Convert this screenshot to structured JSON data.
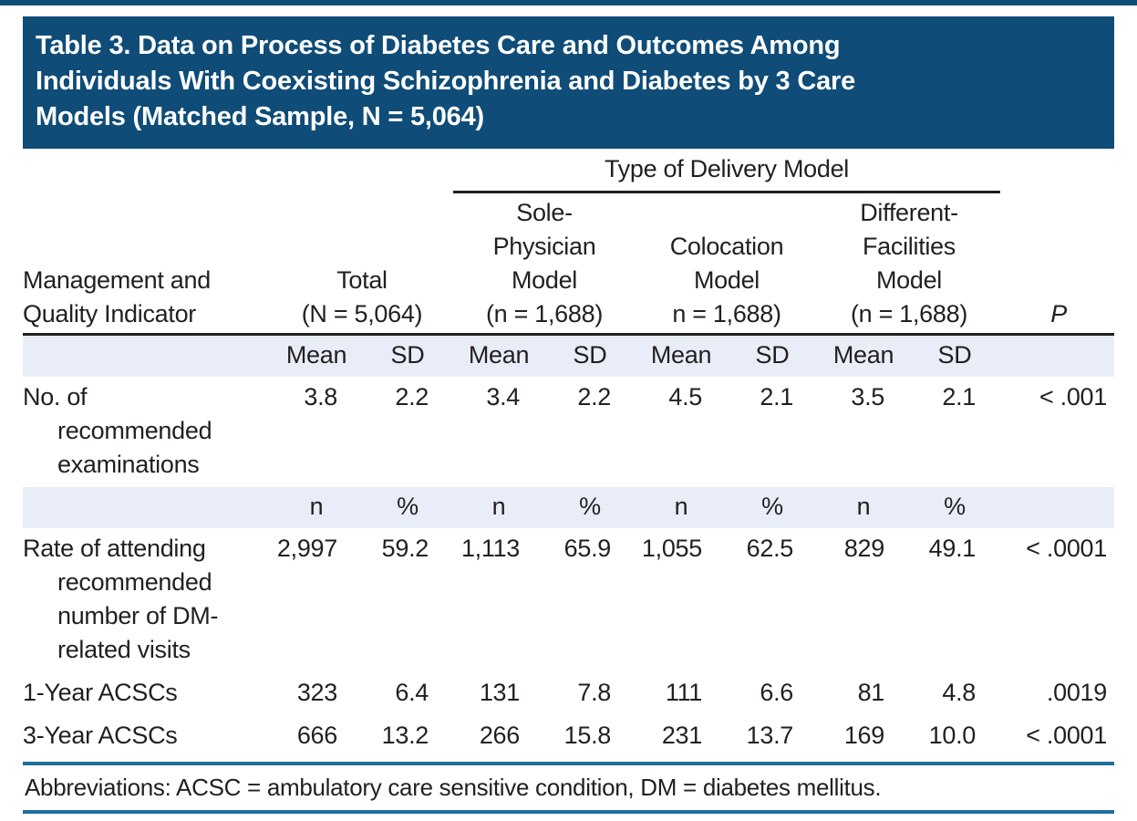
{
  "title_lines": [
    "Table 3. Data on Process of Diabetes Care and Outcomes Among",
    "Individuals With Coexisting Schizophrenia and Diabetes by 3 Care",
    "Models (Matched Sample, N = 5,064)"
  ],
  "columns": {
    "group_label": "Type of Delivery Model",
    "stub_lines": [
      "Management and",
      "Quality Indicator"
    ],
    "groups": [
      {
        "lines": [
          "Total",
          "(N = 5,064)"
        ]
      },
      {
        "lines": [
          "Sole-",
          "Physician",
          "Model",
          "(n = 1,688)"
        ]
      },
      {
        "lines": [
          "Colocation",
          "Model",
          "n = 1,688)"
        ]
      },
      {
        "lines": [
          "Different-",
          "Facilities",
          "Model",
          "(n = 1,688)"
        ]
      }
    ],
    "p_label": "P",
    "stat_mean": [
      "Mean",
      "SD",
      "Mean",
      "SD",
      "Mean",
      "SD",
      "Mean",
      "SD"
    ],
    "stat_n": [
      "n",
      "%",
      "n",
      "%",
      "n",
      "%",
      "n",
      "%"
    ]
  },
  "rows": [
    {
      "label_lines": [
        "No. of",
        "recommended",
        "examinations"
      ],
      "values": [
        "3.8",
        "2.2",
        "3.4",
        "2.2",
        "4.5",
        "2.1",
        "3.5",
        "2.1"
      ],
      "p": "< .001"
    },
    {
      "label_lines": [
        "Rate of attending",
        "recommended",
        "number of DM-",
        "related visits"
      ],
      "values": [
        "2,997",
        "59.2",
        "1,113",
        "65.9",
        "1,055",
        "62.5",
        "829",
        "49.1"
      ],
      "p": "< .0001"
    },
    {
      "label_lines": [
        "1-Year ACSCs"
      ],
      "values": [
        "323",
        "6.4",
        "131",
        "7.8",
        "111",
        "6.6",
        "81",
        "4.8"
      ],
      "p": ".0019"
    },
    {
      "label_lines": [
        "3-Year ACSCs"
      ],
      "values": [
        "666",
        "13.2",
        "266",
        "15.8",
        "231",
        "13.7",
        "169",
        "10.0"
      ],
      "p": "< .0001"
    }
  ],
  "footnote": "Abbreviations: ACSC = ambulatory care sensitive condition, DM = diabetes mellitus.",
  "colors": {
    "header_bg": "#0f4c78",
    "band_bg": "#e8edf8",
    "rule_blue": "#1e6e9e",
    "text": "#231f20"
  }
}
